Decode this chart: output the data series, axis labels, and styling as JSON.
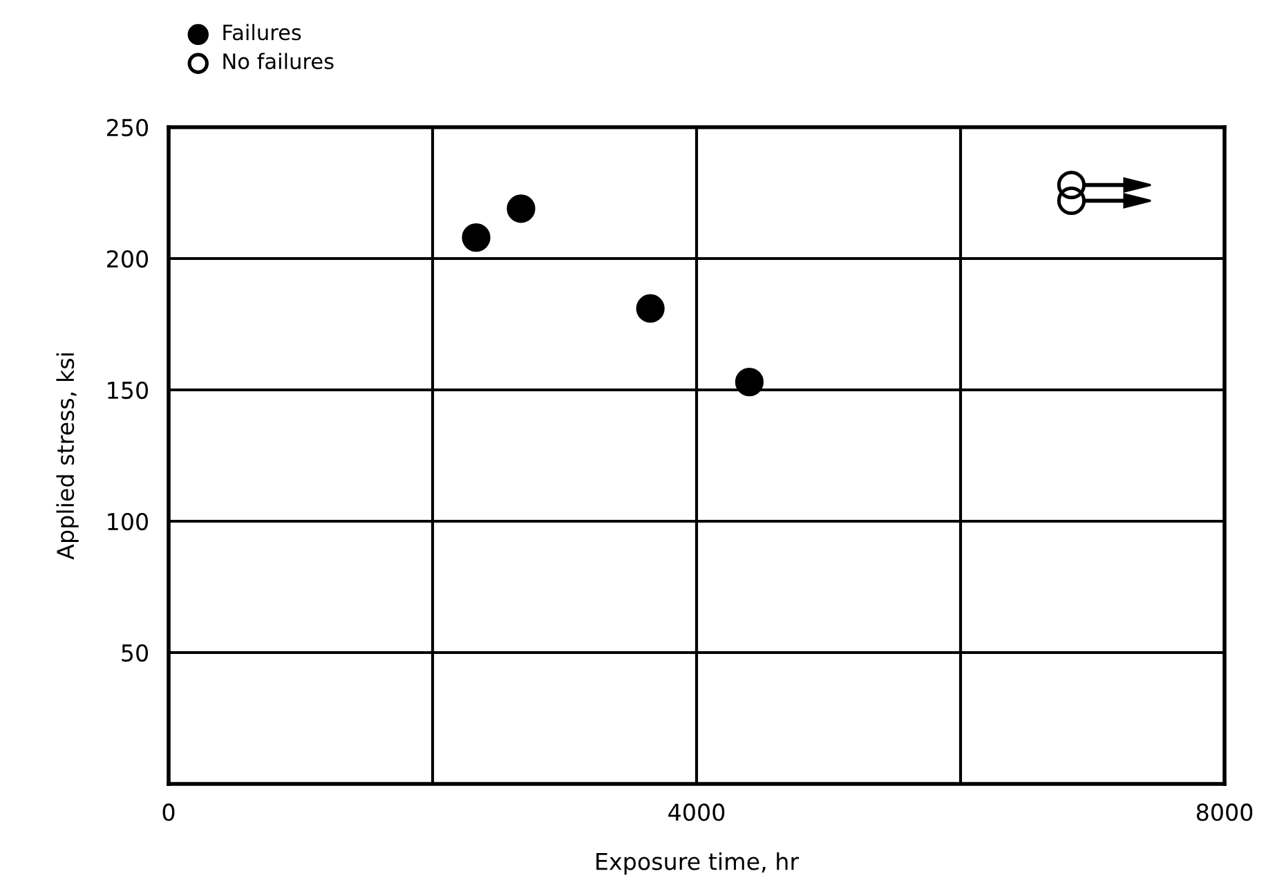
{
  "chart_data": {
    "type": "scatter",
    "xlabel": "Exposure time, hr",
    "ylabel": "Applied stress, ksi",
    "series": [
      {
        "name": "Failures",
        "color": "#000000",
        "x": [
          2330,
          2670,
          3650,
          4400
        ],
        "values": [
          208,
          219,
          181,
          153
        ]
      },
      {
        "name": "No failures",
        "color": "#000000",
        "x": [
          6840,
          6840
        ],
        "values": [
          228,
          222
        ]
      }
    ],
    "xlim": [
      0,
      8000
    ],
    "ylim": [
      0,
      250
    ],
    "xticks": [
      0,
      {
        "value": 2000,
        "label": null
      },
      4000,
      {
        "value": 6000,
        "label": null
      },
      8000
    ],
    "yticks": [
      50,
      100,
      150,
      200,
      250
    ],
    "grid": true,
    "legend": "top left",
    "marker": "circle"
  }
}
